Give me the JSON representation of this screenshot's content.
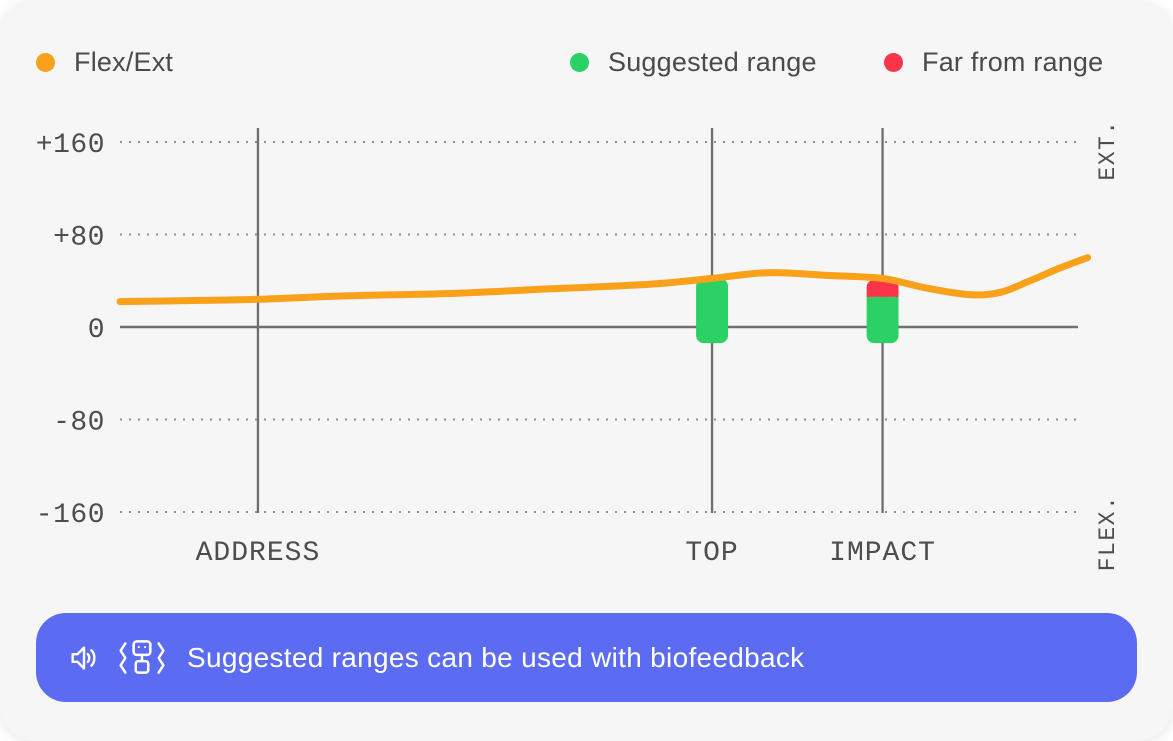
{
  "card": {
    "background": "#F6F6F6"
  },
  "legend": {
    "items": [
      {
        "label": "Flex/Ext",
        "color": "#F9A11B"
      },
      {
        "label": "Suggested range",
        "color": "#2BD164"
      },
      {
        "label": "Far from range",
        "color": "#FA3449"
      }
    ]
  },
  "chart_data": {
    "type": "line",
    "title": "",
    "unit": "degrees",
    "ylim": [
      -160,
      160
    ],
    "yticks": [
      {
        "label": "+160",
        "value": 160
      },
      {
        "label": "+80",
        "value": 80
      },
      {
        "label": "0",
        "value": 0
      },
      {
        "label": "-80",
        "value": -80
      },
      {
        "label": "-160",
        "value": -160
      }
    ],
    "y_axis_label_top": "EXT.",
    "y_axis_label_bottom": "FLEX.",
    "grid": "dotted-horizontal",
    "legend_position": "top",
    "x_phases": [
      {
        "label": "ADDRESS",
        "pos": 14.4
      },
      {
        "label": "TOP",
        "pos": 61.8
      },
      {
        "label": "IMPACT",
        "pos": 79.6
      }
    ],
    "series": [
      {
        "name": "Flex/Ext",
        "color": "#F9A11B",
        "points": [
          {
            "pos": 0,
            "value": 22
          },
          {
            "pos": 8.4,
            "value": 23
          },
          {
            "pos": 14.4,
            "value": 24
          },
          {
            "pos": 24,
            "value": 27
          },
          {
            "pos": 34.4,
            "value": 29
          },
          {
            "pos": 44.9,
            "value": 33
          },
          {
            "pos": 55.3,
            "value": 37
          },
          {
            "pos": 61.8,
            "value": 42
          },
          {
            "pos": 67.6,
            "value": 47
          },
          {
            "pos": 74.1,
            "value": 44.5
          },
          {
            "pos": 79.6,
            "value": 42
          },
          {
            "pos": 84,
            "value": 34
          },
          {
            "pos": 88.7,
            "value": 28
          },
          {
            "pos": 91.9,
            "value": 30
          },
          {
            "pos": 95,
            "value": 40
          },
          {
            "pos": 98.1,
            "value": 51
          },
          {
            "pos": 101,
            "value": 60
          }
        ]
      }
    ],
    "ranges": [
      {
        "phase": "TOP",
        "pos": 61.8,
        "suggested_min": -14,
        "suggested_max": 42,
        "far_min": null,
        "far_max": null
      },
      {
        "phase": "IMPACT",
        "pos": 79.6,
        "suggested_min": -14,
        "suggested_max": 26,
        "far_min": 26,
        "far_max": 41
      }
    ],
    "suggested_color": "#2BD164",
    "far_color": "#FA3449"
  },
  "banner": {
    "text": "Suggested ranges can be used with biofeedback",
    "background": "#5B6CF2",
    "icons": [
      "speaker-icon",
      "vibration-icon"
    ]
  }
}
